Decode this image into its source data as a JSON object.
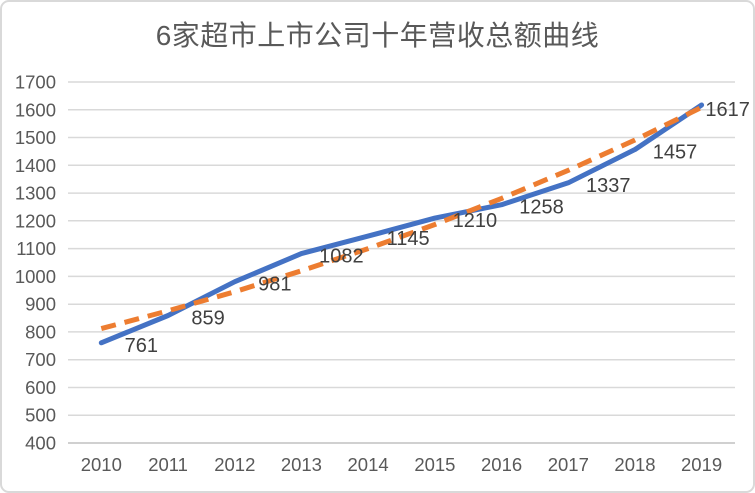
{
  "chart_data": {
    "type": "line",
    "title": "6家超市上市公司十年营收总额曲线",
    "categories": [
      "2010",
      "2011",
      "2012",
      "2013",
      "2014",
      "2015",
      "2016",
      "2017",
      "2018",
      "2019"
    ],
    "series": [
      {
        "id": "revenue",
        "values": [
          761,
          859,
          981,
          1082,
          1145,
          1210,
          1258,
          1337,
          1457,
          1617
        ],
        "color": "#4472C4",
        "style": "solid",
        "has_data_labels": true
      },
      {
        "id": "trend",
        "values": [
          812,
          876,
          945,
          1020,
          1100,
          1187,
          1281,
          1382,
          1491,
          1609
        ],
        "color": "#ED7D31",
        "style": "dashed",
        "has_data_labels": false,
        "estimated": true
      }
    ],
    "data_labels": [
      "761",
      "859",
      "981",
      "1082",
      "1145",
      "1210",
      "1258",
      "1337",
      "1457",
      "1617"
    ],
    "yticks": [
      "1700",
      "1600",
      "1500",
      "1400",
      "1300",
      "1200",
      "1100",
      "1000",
      "900",
      "800",
      "700",
      "600",
      "500",
      "400"
    ],
    "ylim": [
      400,
      1700
    ],
    "ytick_step": 100,
    "grid": "horizontal",
    "legend": "none",
    "colors": {
      "grid": "#D9D9D9",
      "axis_line": "#C9C9C9",
      "axis_text": "#595959",
      "title_text": "#595959",
      "data_label_text": "#404040",
      "border": "#D9D9D9",
      "background": "#FFFFFF"
    }
  }
}
